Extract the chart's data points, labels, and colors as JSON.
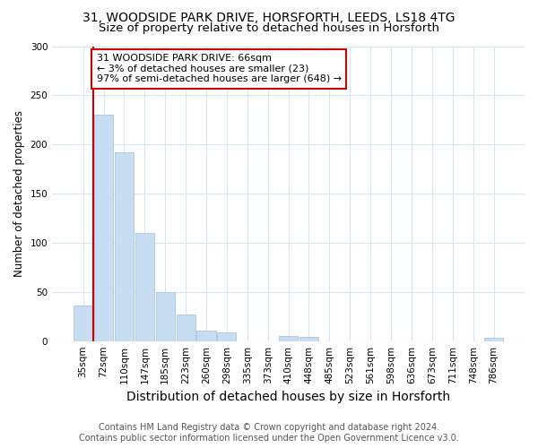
{
  "title": "31, WOODSIDE PARK DRIVE, HORSFORTH, LEEDS, LS18 4TG",
  "subtitle": "Size of property relative to detached houses in Horsforth",
  "xlabel": "Distribution of detached houses by size in Horsforth",
  "ylabel": "Number of detached properties",
  "categories": [
    "35sqm",
    "72sqm",
    "110sqm",
    "147sqm",
    "185sqm",
    "223sqm",
    "260sqm",
    "298sqm",
    "335sqm",
    "373sqm",
    "410sqm",
    "448sqm",
    "485sqm",
    "523sqm",
    "561sqm",
    "598sqm",
    "636sqm",
    "673sqm",
    "711sqm",
    "748sqm",
    "786sqm"
  ],
  "values": [
    36,
    230,
    192,
    110,
    50,
    27,
    11,
    9,
    0,
    0,
    5,
    4,
    0,
    0,
    0,
    0,
    0,
    0,
    0,
    0,
    3
  ],
  "bar_color": "#c9ddf2",
  "bar_edge_color": "#aac4e0",
  "annotation_title": "31 WOODSIDE PARK DRIVE: 66sqm",
  "annotation_line1": "← 3% of detached houses are smaller (23)",
  "annotation_line2": "97% of semi-detached houses are larger (648) →",
  "annotation_box_color": "#ffffff",
  "annotation_box_edge_color": "#cc0000",
  "property_line_color": "#cc0000",
  "ylim": [
    0,
    300
  ],
  "yticks": [
    0,
    50,
    100,
    150,
    200,
    250,
    300
  ],
  "footer_line1": "Contains HM Land Registry data © Crown copyright and database right 2024.",
  "footer_line2": "Contains public sector information licensed under the Open Government Licence v3.0.",
  "bg_color": "#ffffff",
  "plot_bg_color": "#ffffff",
  "grid_color": "#d8e4f0",
  "title_fontsize": 10,
  "subtitle_fontsize": 9.5,
  "xlabel_fontsize": 10,
  "ylabel_fontsize": 8.5,
  "tick_fontsize": 7.5,
  "footer_fontsize": 7
}
